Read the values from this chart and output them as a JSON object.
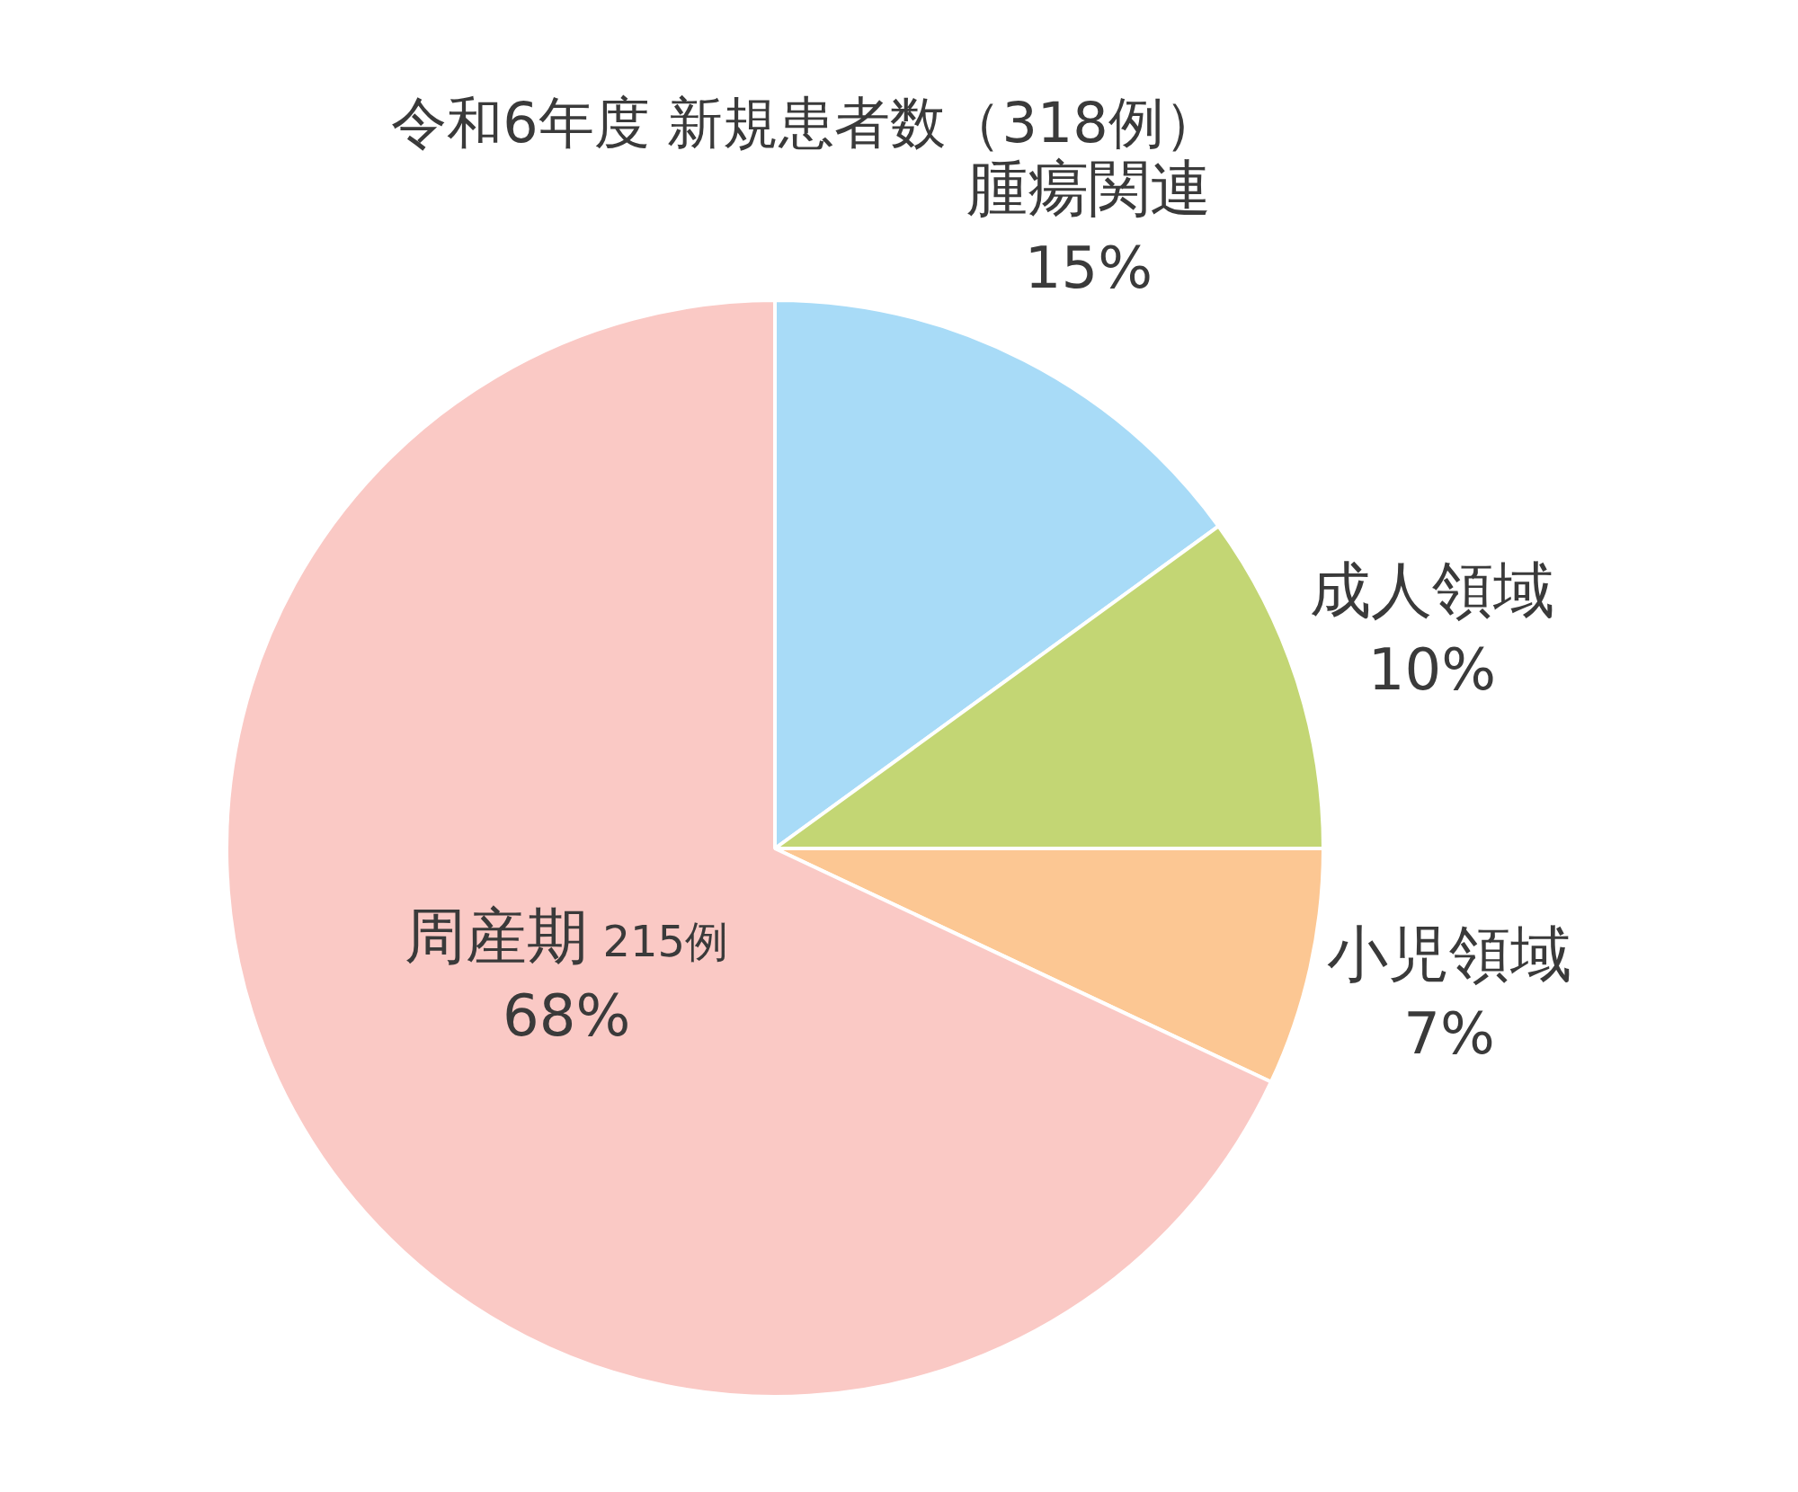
{
  "chart_data": {
    "type": "pie",
    "title": "令和6年度 新規患者数（318例）",
    "categories": [
      "腫瘍関連",
      "成人領域",
      "小児領域",
      "周産期"
    ],
    "values": [
      15,
      10,
      7,
      68
    ],
    "value_labels": [
      "15%",
      "10%",
      "7%",
      "68%"
    ],
    "colors": [
      "#a8dbf7",
      "#c3d674",
      "#fcc793",
      "#fac9c5"
    ],
    "annotations": [
      {
        "text": "215例",
        "x": "周産期"
      }
    ],
    "legend": false
  }
}
